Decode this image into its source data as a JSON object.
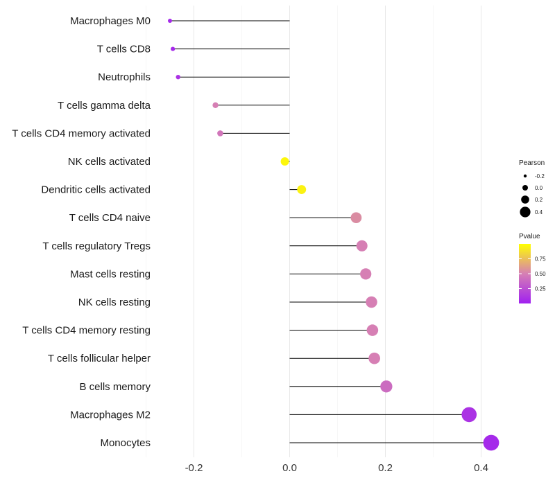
{
  "chart_data": {
    "type": "lollipop",
    "categories": [
      "Macrophages M0",
      "T cells CD8",
      "Neutrophils",
      "T cells gamma delta",
      "T cells CD4 memory activated",
      "NK cells activated",
      "Dendritic cells activated",
      "T cells CD4 naive",
      "T cells regulatory  Tregs ",
      "Mast cells resting",
      "NK cells resting",
      "T cells CD4 memory resting",
      "T cells follicular helper",
      "B cells memory",
      "Macrophages M2",
      "Monocytes"
    ],
    "values": [
      -0.25,
      -0.244,
      -0.233,
      -0.155,
      -0.145,
      -0.01,
      0.025,
      0.139,
      0.151,
      0.159,
      0.171,
      0.173,
      0.177,
      0.202,
      0.375,
      0.421
    ],
    "pvalues": [
      0.05,
      0.05,
      0.1,
      0.5,
      0.45,
      0.97,
      0.95,
      0.55,
      0.5,
      0.5,
      0.5,
      0.5,
      0.5,
      0.4,
      0.1,
      0.05
    ],
    "xlim": [
      -0.3,
      0.45
    ],
    "xticks": [
      -0.2,
      0.0,
      0.2,
      0.4
    ],
    "xtick_labels": [
      "-0.2",
      "0.0",
      "0.2",
      "0.4"
    ],
    "grid": true,
    "legend_size": {
      "title": "Pearson",
      "levels": [
        -0.2,
        0.0,
        0.2,
        0.4
      ],
      "labels": [
        "-0.2",
        "0.0",
        "0.2",
        "0.4"
      ]
    },
    "legend_color": {
      "title": "Pvalue",
      "range": [
        0.0,
        1.0
      ],
      "ticks": [
        0.25,
        0.5,
        0.75
      ],
      "tick_labels": [
        "0.25",
        "0.50",
        "0.75"
      ],
      "color_low": "#a020f0",
      "color_mid": "#d67fb4",
      "color_high": "#ffff00"
    },
    "line_color": "#000000",
    "legend_position": "right"
  }
}
